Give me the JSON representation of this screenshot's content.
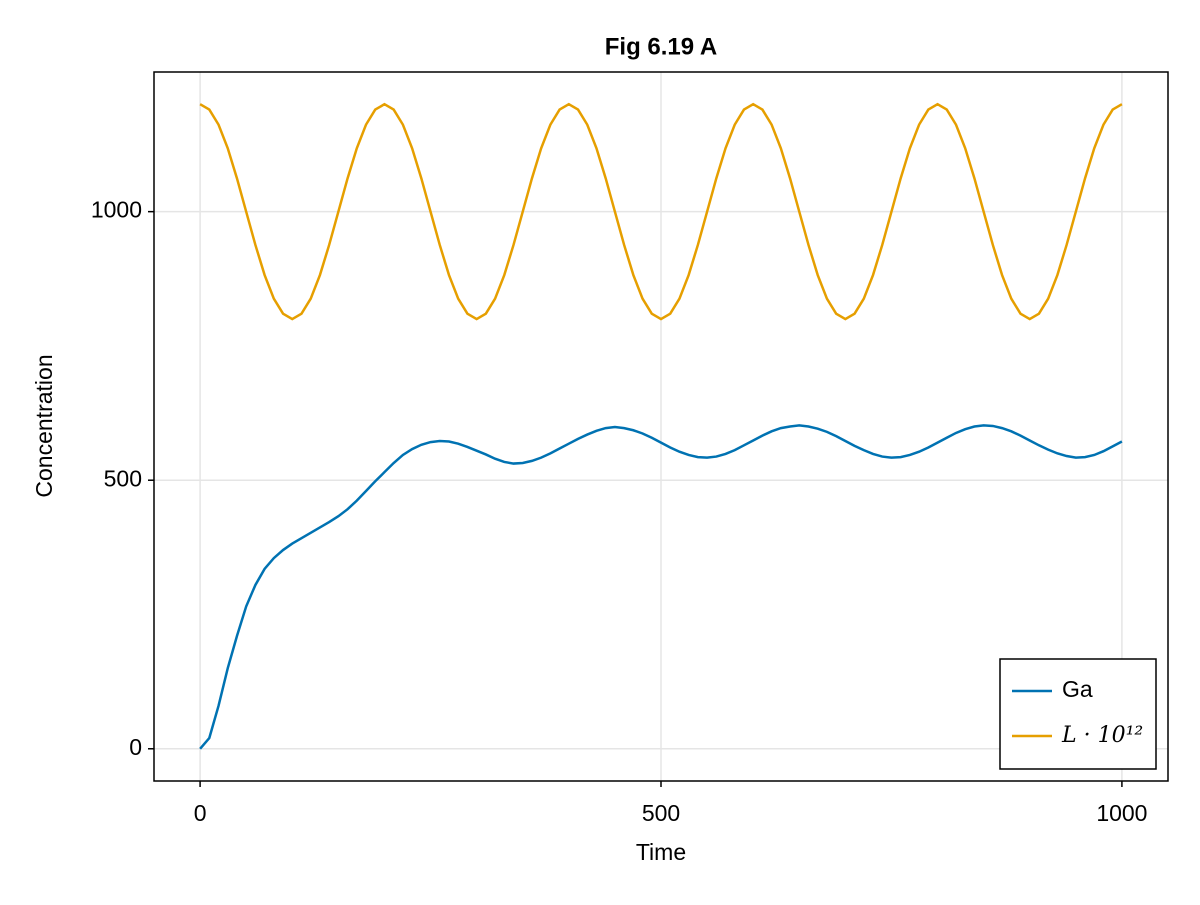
{
  "chart_data": {
    "type": "line",
    "title": "Fig 6.19 A",
    "x_label": "Time",
    "y_label": "Concentration",
    "x": [
      0,
      10,
      20,
      30,
      40,
      50,
      60,
      70,
      80,
      90,
      100,
      110,
      120,
      130,
      140,
      150,
      160,
      170,
      180,
      190,
      200,
      210,
      220,
      230,
      240,
      250,
      260,
      270,
      280,
      290,
      300,
      310,
      320,
      330,
      340,
      350,
      360,
      370,
      380,
      390,
      400,
      410,
      420,
      430,
      440,
      450,
      460,
      470,
      480,
      490,
      500,
      510,
      520,
      530,
      540,
      550,
      560,
      570,
      580,
      590,
      600,
      610,
      620,
      630,
      640,
      650,
      660,
      670,
      680,
      690,
      700,
      710,
      720,
      730,
      740,
      750,
      760,
      770,
      780,
      790,
      800,
      810,
      820,
      830,
      840,
      850,
      860,
      870,
      880,
      890,
      900,
      910,
      920,
      930,
      940,
      950,
      960,
      970,
      980,
      990,
      1000
    ],
    "series": [
      {
        "name": "Ga",
        "color": "#0072b2",
        "values": [
          0,
          20,
          80,
          150,
          210,
          265,
          305,
          335,
          355,
          370,
          382,
          392,
          402,
          412,
          422,
          433,
          446,
          462,
          480,
          498,
          515,
          532,
          547,
          558,
          566,
          571,
          573,
          572,
          568,
          562,
          555,
          548,
          540,
          534,
          531,
          532,
          536,
          542,
          550,
          559,
          568,
          577,
          585,
          592,
          597,
          599,
          597,
          593,
          587,
          579,
          570,
          561,
          553,
          547,
          543,
          542,
          544,
          549,
          556,
          565,
          574,
          583,
          591,
          597,
          600,
          602,
          600,
          596,
          590,
          582,
          573,
          564,
          556,
          549,
          544,
          542,
          543,
          547,
          553,
          561,
          570,
          579,
          588,
          595,
          600,
          602,
          601,
          597,
          591,
          583,
          574,
          565,
          557,
          550,
          545,
          542,
          543,
          547,
          554,
          563,
          572
        ]
      },
      {
        "name": "L · 10¹²",
        "color": "#e69f00",
        "values": [
          1200,
          1190,
          1162,
          1118,
          1062,
          1000,
          938,
          882,
          838,
          810,
          800,
          810,
          838,
          882,
          938,
          1000,
          1062,
          1118,
          1162,
          1190,
          1200,
          1190,
          1162,
          1118,
          1062,
          1000,
          938,
          882,
          838,
          810,
          800,
          810,
          838,
          882,
          938,
          1000,
          1062,
          1118,
          1162,
          1190,
          1200,
          1190,
          1162,
          1118,
          1062,
          1000,
          938,
          882,
          838,
          810,
          800,
          810,
          838,
          882,
          938,
          1000,
          1062,
          1118,
          1162,
          1190,
          1200,
          1190,
          1162,
          1118,
          1062,
          1000,
          938,
          882,
          838,
          810,
          800,
          810,
          838,
          882,
          938,
          1000,
          1062,
          1118,
          1162,
          1190,
          1200,
          1190,
          1162,
          1118,
          1062,
          1000,
          938,
          882,
          838,
          810,
          800,
          810,
          838,
          882,
          938,
          1000,
          1062,
          1118,
          1162,
          1190,
          1200
        ]
      }
    ],
    "xlim": [
      -50,
      1050
    ],
    "ylim": [
      -60,
      1260
    ],
    "xticks": [
      0,
      500,
      1000
    ],
    "yticks": [
      0,
      500,
      1000
    ],
    "grid": true,
    "legend": "bottom-right"
  }
}
